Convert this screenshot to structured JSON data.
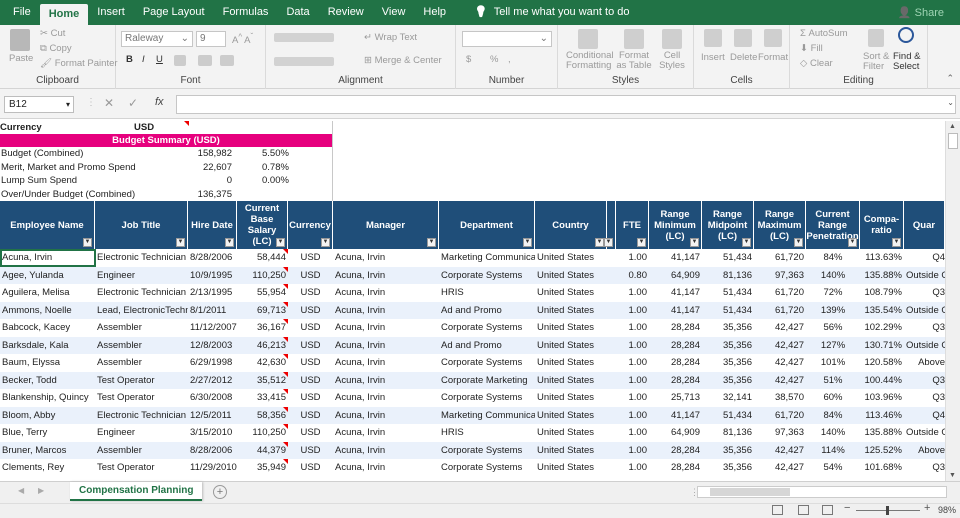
{
  "ribbon_tabs": [
    "File",
    "Home",
    "Insert",
    "Page Layout",
    "Formulas",
    "Data",
    "Review",
    "View",
    "Help"
  ],
  "active_tab": "Home",
  "tell_me": "Tell me what you want to do",
  "share": "Share",
  "clipboard": {
    "paste": "Paste",
    "cut": "Cut",
    "copy": "Copy",
    "format_painter": "Format Painter",
    "label": "Clipboard"
  },
  "font": {
    "name": "Raleway",
    "size": "9",
    "bold": "B",
    "italic": "I",
    "underline": "U",
    "label": "Font"
  },
  "alignment": {
    "wrap": "Wrap Text",
    "merge": "Merge & Center",
    "label": "Alignment"
  },
  "number": {
    "currency": "$",
    "percent": "%",
    "comma": ",",
    "label": "Number"
  },
  "styles": {
    "conditional": "Conditional Formatting",
    "format_table": "Format as Table",
    "cell_styles": "Cell Styles",
    "label": "Styles"
  },
  "cells": {
    "insert": "Insert",
    "delete": "Delete",
    "format": "Format",
    "label": "Cells"
  },
  "editing": {
    "autosum": "AutoSum",
    "fill": "Fill",
    "clear": "Clear",
    "sort": "Sort & Filter",
    "find": "Find & Select",
    "label": "Editing"
  },
  "formula_bar": {
    "name_box": "B12",
    "fx": "fx"
  },
  "summary": {
    "currency_label": "Currency",
    "currency_value": "USD",
    "title": "Budget Summary (USD)",
    "rows": [
      {
        "label": "Budget (Combined)",
        "value": "158,982",
        "pct": "5.50%"
      },
      {
        "label": "Merit, Market and Promo Spend",
        "value": "22,607",
        "pct": "0.78%"
      },
      {
        "label": "Lump Sum Spend",
        "value": "0",
        "pct": "0.00%"
      },
      {
        "label": "Over/Under Budget (Combined)",
        "value": "136,375",
        "pct": ""
      }
    ]
  },
  "headers": [
    "Employee Name",
    "Job Title",
    "Hire Date",
    "Current Base Salary (LC)",
    "Currency",
    "Manager",
    "Department",
    "Country",
    "",
    "FTE",
    "Range Minimum (LC)",
    "Range Midpoint (LC)",
    "Range Maximum (LC)",
    "Current Range Penetration",
    "Compa-ratio",
    "Quar"
  ],
  "rows": [
    [
      "Acuna, Irvin",
      "Electronic Technician",
      "8/28/2006",
      "58,444",
      "USD",
      "Acuna, Irvin",
      "Marketing Communicati",
      "United States",
      "",
      "1.00",
      "41,147",
      "51,434",
      "61,720",
      "84%",
      "113.63%",
      "Q4"
    ],
    [
      "Agee, Yulanda",
      "Engineer",
      "10/9/1995",
      "110,250",
      "USD",
      "Acuna, Irvin",
      "Corporate Systems",
      "United States",
      "",
      "0.80",
      "64,909",
      "81,136",
      "97,363",
      "140%",
      "135.88%",
      "Outside O"
    ],
    [
      "Aguilera, Melisa",
      "Electronic Technician",
      "2/13/1995",
      "55,954",
      "USD",
      "Acuna, Irvin",
      "HRIS",
      "United States",
      "",
      "1.00",
      "41,147",
      "51,434",
      "61,720",
      "72%",
      "108.79%",
      "Q3"
    ],
    [
      "Ammons, Noelle",
      "Lead, ElectronicTechni",
      "8/1/2011",
      "69,713",
      "USD",
      "Acuna, Irvin",
      "Ad and Promo",
      "United States",
      "",
      "1.00",
      "41,147",
      "51,434",
      "61,720",
      "139%",
      "135.54%",
      "Outside O"
    ],
    [
      "Babcock, Kacey",
      "Assembler",
      "11/12/2007",
      "36,167",
      "USD",
      "Acuna, Irvin",
      "Corporate Systems",
      "United States",
      "",
      "1.00",
      "28,284",
      "35,356",
      "42,427",
      "56%",
      "102.29%",
      "Q3"
    ],
    [
      "Barksdale, Kala",
      "Assembler",
      "12/8/2003",
      "46,213",
      "USD",
      "Acuna, Irvin",
      "Ad and Promo",
      "United States",
      "",
      "1.00",
      "28,284",
      "35,356",
      "42,427",
      "127%",
      "130.71%",
      "Outside O"
    ],
    [
      "Baum, Elyssa",
      "Assembler",
      "6/29/1998",
      "42,630",
      "USD",
      "Acuna, Irvin",
      "Corporate Systems",
      "United States",
      "",
      "1.00",
      "28,284",
      "35,356",
      "42,427",
      "101%",
      "120.58%",
      "Above"
    ],
    [
      "Becker, Todd",
      "Test Operator",
      "2/27/2012",
      "35,512",
      "USD",
      "Acuna, Irvin",
      "Corporate Marketing",
      "United States",
      "",
      "1.00",
      "28,284",
      "35,356",
      "42,427",
      "51%",
      "100.44%",
      "Q3"
    ],
    [
      "Blankenship, Quincy",
      "Test Operator",
      "6/30/2008",
      "33,415",
      "USD",
      "Acuna, Irvin",
      "Corporate Systems",
      "United States",
      "",
      "1.00",
      "25,713",
      "32,141",
      "38,570",
      "60%",
      "103.96%",
      "Q3"
    ],
    [
      "Bloom, Abby",
      "Electronic Technician",
      "12/5/2011",
      "58,356",
      "USD",
      "Acuna, Irvin",
      "Marketing Communicati",
      "United States",
      "",
      "1.00",
      "41,147",
      "51,434",
      "61,720",
      "84%",
      "113.46%",
      "Q4"
    ],
    [
      "Blue, Terry",
      "Engineer",
      "3/15/2010",
      "110,250",
      "USD",
      "Acuna, Irvin",
      "HRIS",
      "United States",
      "",
      "1.00",
      "64,909",
      "81,136",
      "97,363",
      "140%",
      "135.88%",
      "Outside O"
    ],
    [
      "Bruner, Marcos",
      "Assembler",
      "8/28/2006",
      "44,379",
      "USD",
      "Acuna, Irvin",
      "Corporate Systems",
      "United States",
      "",
      "1.00",
      "28,284",
      "35,356",
      "42,427",
      "114%",
      "125.52%",
      "Above"
    ],
    [
      "Clements, Rey",
      "Test Operator",
      "11/29/2010",
      "35,949",
      "USD",
      "Acuna, Irvin",
      "Corporate Systems",
      "United States",
      "",
      "1.00",
      "28,284",
      "35,356",
      "42,427",
      "54%",
      "101.68%",
      "Q3"
    ]
  ],
  "sheet_tab": "Compensation Planning",
  "zoom": "98%"
}
